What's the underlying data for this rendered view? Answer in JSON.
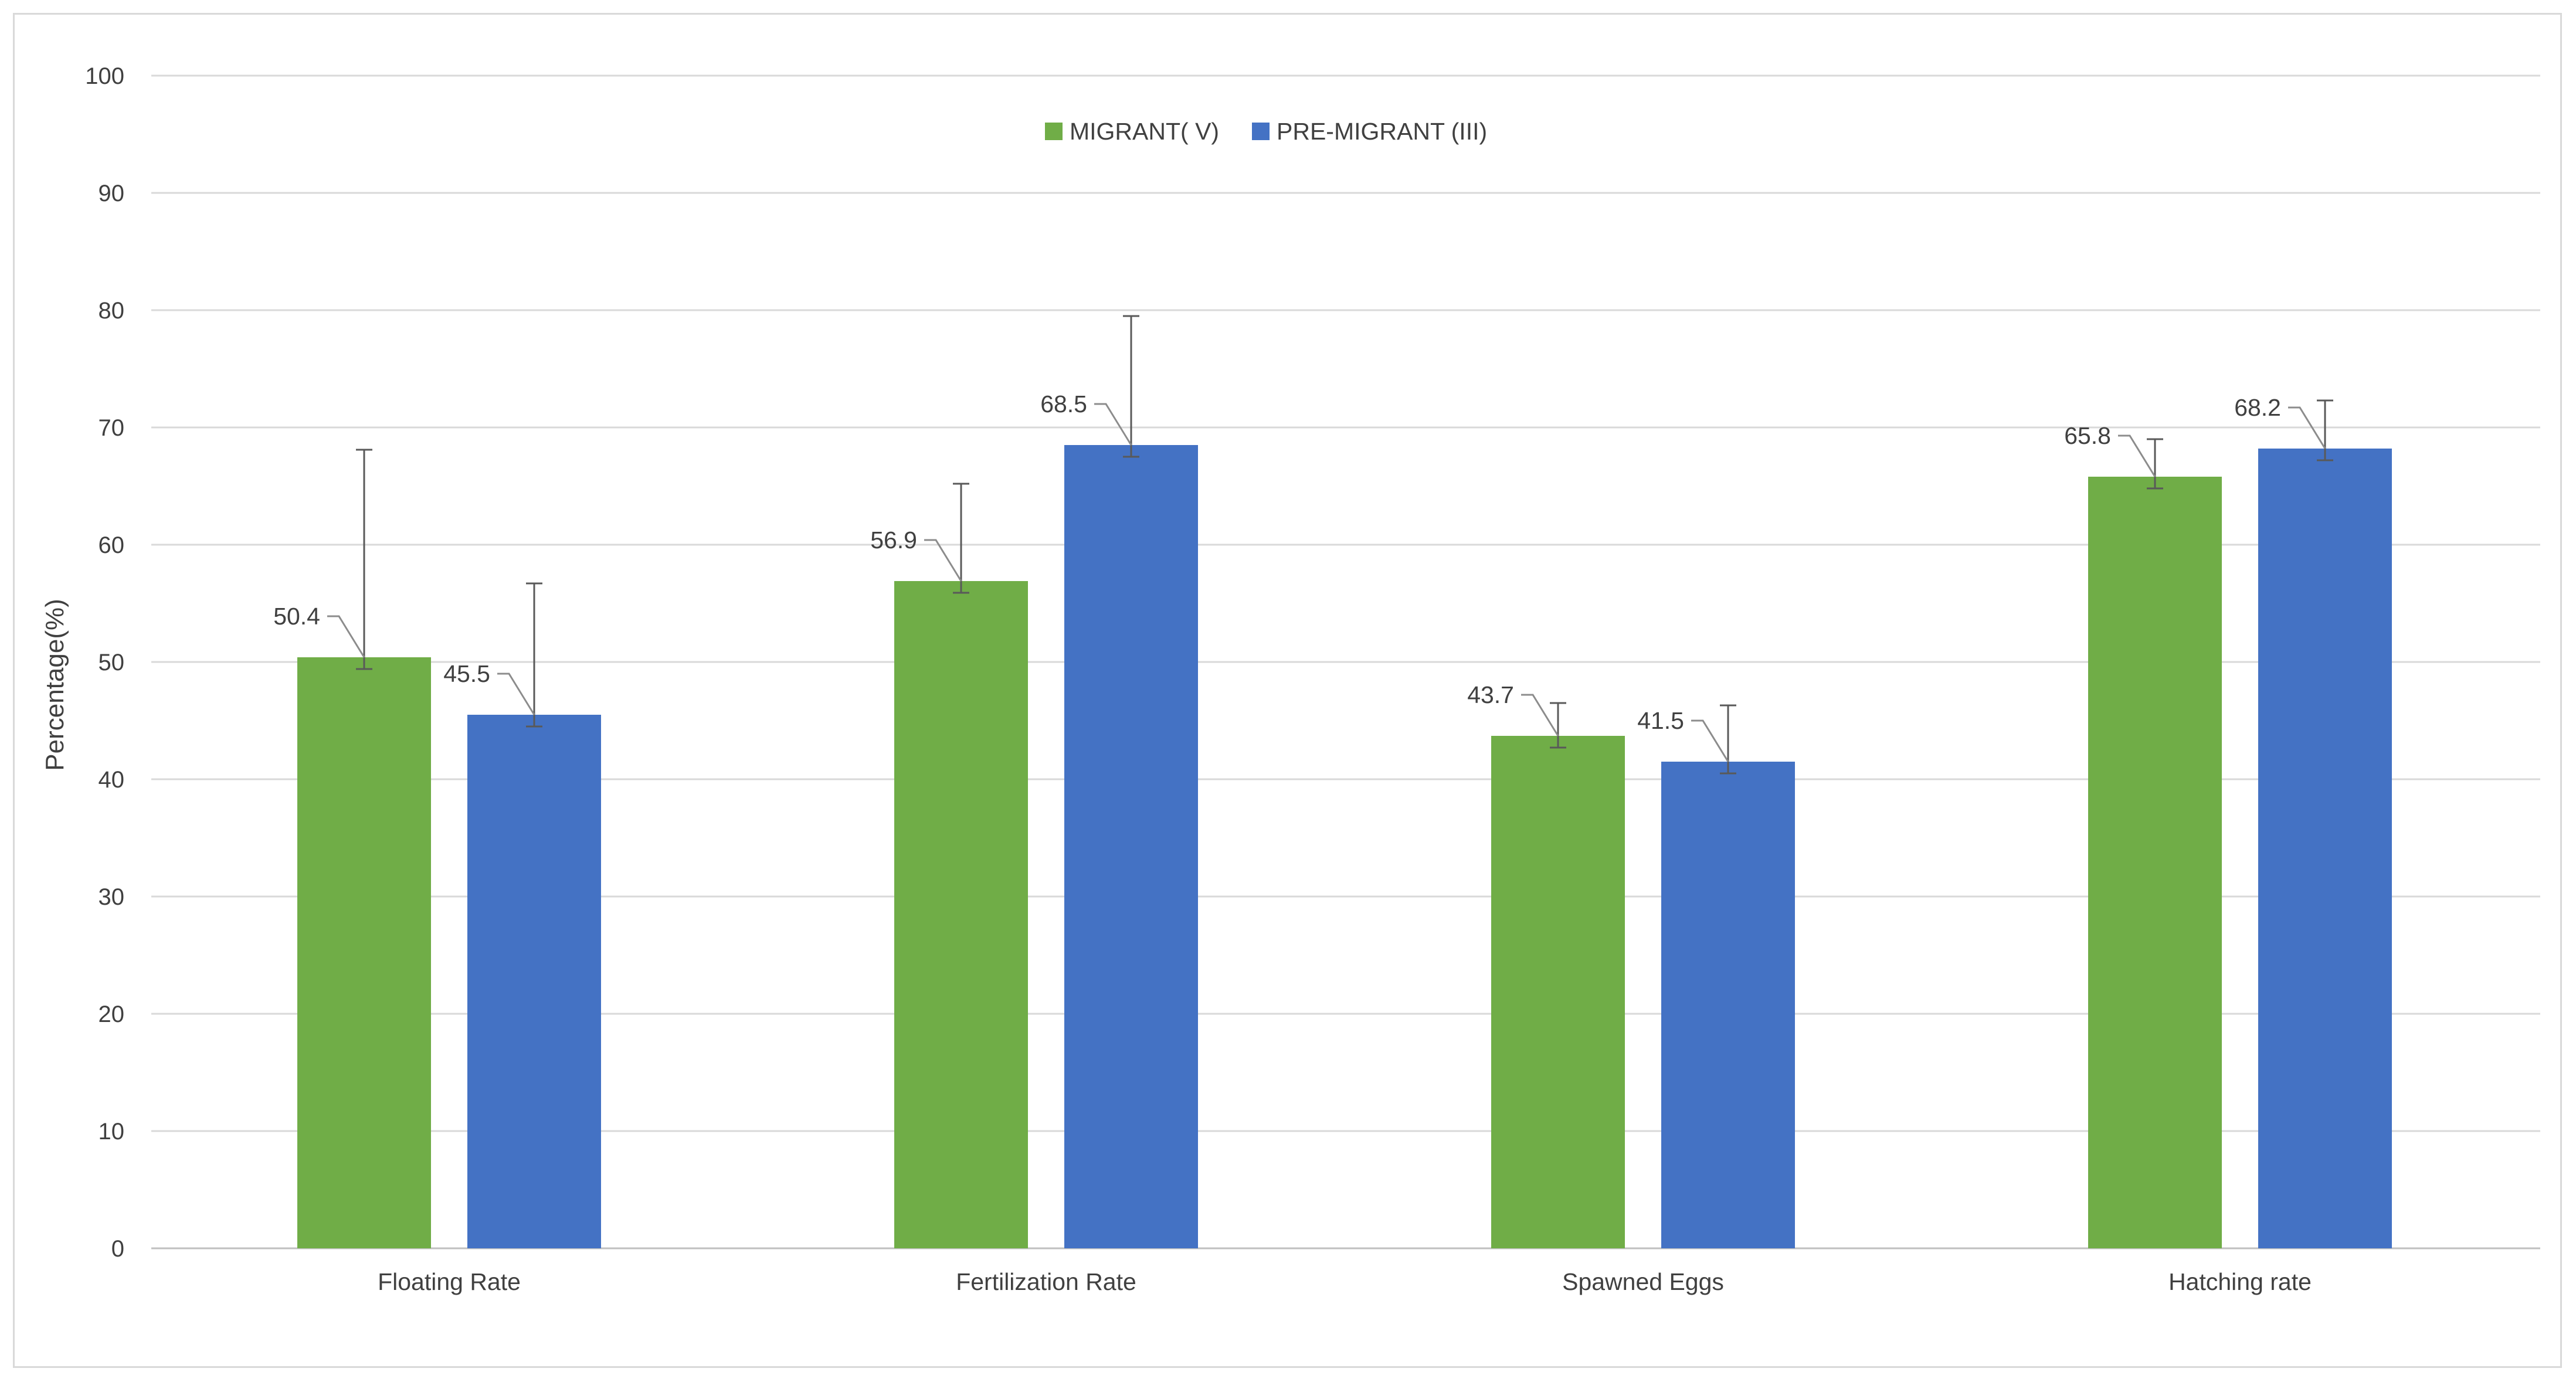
{
  "chart_data": {
    "type": "bar",
    "title": "",
    "xlabel": "",
    "ylabel": "Percentage(%)",
    "ylim": [
      0,
      100
    ],
    "yticks": [
      0,
      10,
      20,
      30,
      40,
      50,
      60,
      70,
      80,
      90,
      100
    ],
    "grid": "horizontal",
    "legend_position": "top-center",
    "categories": [
      "Floating Rate",
      "Fertilization Rate",
      "Spawned Eggs",
      "Hatching rate"
    ],
    "series": [
      {
        "name": "MIGRANT( V)",
        "color": "#70ad47",
        "values": [
          50.4,
          56.9,
          43.7,
          65.8
        ],
        "error_upper": [
          68.1,
          65.2,
          46.5,
          69.0
        ],
        "error_lower": [
          49.4,
          55.9,
          42.7,
          64.8
        ]
      },
      {
        "name": "PRE-MIGRANT (III)",
        "color": "#4472c4",
        "values": [
          45.5,
          68.5,
          41.5,
          68.2
        ],
        "error_upper": [
          56.7,
          79.5,
          46.3,
          72.3
        ],
        "error_lower": [
          44.5,
          67.5,
          40.5,
          67.2
        ]
      }
    ]
  }
}
